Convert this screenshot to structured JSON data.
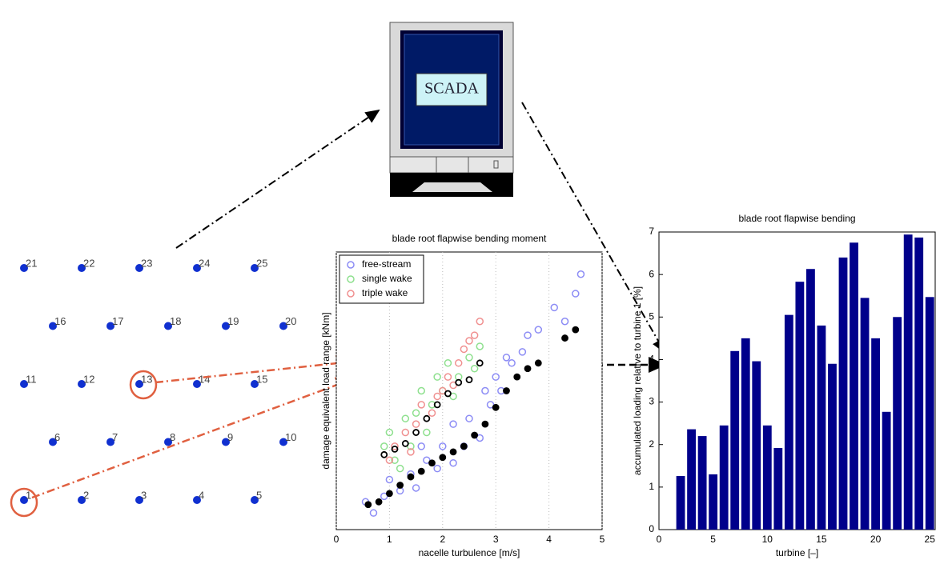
{
  "monitor_label": "SCADA",
  "turbines": [
    "1",
    "2",
    "3",
    "4",
    "5",
    "6",
    "7",
    "8",
    "9",
    "10",
    "11",
    "12",
    "13",
    "14",
    "15",
    "16",
    "17",
    "18",
    "19",
    "20",
    "21",
    "22",
    "23",
    "24",
    "25"
  ],
  "chart_data": [
    {
      "type": "scatter",
      "title": "blade root flapwise bending moment",
      "x_label": "nacelle turbulence [m/s]",
      "y_label": "damage equivalent load range [kNm]",
      "xlim": [
        0,
        5
      ],
      "xticks": [
        0,
        1,
        2,
        3,
        4,
        5
      ],
      "ylim": [
        0,
        1
      ],
      "grid": true,
      "legend": "upper left",
      "series": [
        {
          "name": "free-stream",
          "color": "#8c8cf5",
          "x": [
            0.55,
            0.7,
            0.9,
            1.0,
            1.2,
            1.4,
            1.5,
            1.7,
            1.9,
            2.0,
            2.2,
            2.4,
            2.5,
            2.7,
            2.9,
            3.0,
            3.1,
            3.3,
            3.5,
            3.6,
            3.8,
            4.1,
            4.3,
            4.5,
            4.6,
            2.2,
            1.6,
            2.8,
            3.2
          ],
          "values": [
            0.1,
            0.06,
            0.12,
            0.18,
            0.14,
            0.2,
            0.15,
            0.25,
            0.22,
            0.3,
            0.24,
            0.3,
            0.4,
            0.33,
            0.45,
            0.55,
            0.5,
            0.6,
            0.64,
            0.7,
            0.72,
            0.8,
            0.75,
            0.85,
            0.92,
            0.38,
            0.3,
            0.5,
            0.62
          ]
        },
        {
          "name": "single wake",
          "color": "#8ee08e",
          "x": [
            0.9,
            1.0,
            1.1,
            1.3,
            1.4,
            1.5,
            1.6,
            1.8,
            1.9,
            2.0,
            2.1,
            2.3,
            2.5,
            2.6,
            2.7,
            1.2,
            1.7,
            2.2
          ],
          "values": [
            0.3,
            0.35,
            0.25,
            0.4,
            0.3,
            0.42,
            0.5,
            0.45,
            0.55,
            0.5,
            0.6,
            0.55,
            0.62,
            0.58,
            0.66,
            0.22,
            0.35,
            0.48
          ]
        },
        {
          "name": "triple wake",
          "color": "#f09090",
          "x": [
            1.0,
            1.1,
            1.3,
            1.5,
            1.6,
            1.8,
            2.0,
            2.1,
            2.3,
            2.4,
            2.5,
            2.6,
            2.7,
            1.4,
            1.9,
            2.2
          ],
          "values": [
            0.25,
            0.3,
            0.35,
            0.38,
            0.45,
            0.42,
            0.5,
            0.55,
            0.6,
            0.65,
            0.68,
            0.7,
            0.75,
            0.28,
            0.48,
            0.52
          ]
        }
      ],
      "means": [
        {
          "color": "#000000",
          "filled": true,
          "x": [
            0.6,
            0.8,
            1.0,
            1.2,
            1.4,
            1.6,
            1.8,
            2.0,
            2.2,
            2.4,
            2.6,
            2.8,
            3.0,
            3.2,
            3.4,
            3.6,
            3.8,
            4.3,
            4.5
          ],
          "values": [
            0.09,
            0.1,
            0.13,
            0.16,
            0.19,
            0.21,
            0.24,
            0.26,
            0.28,
            0.3,
            0.34,
            0.38,
            0.44,
            0.5,
            0.55,
            0.58,
            0.6,
            0.69,
            0.72
          ]
        },
        {
          "color": "#000000",
          "filled": false,
          "x": [
            0.9,
            1.1,
            1.3,
            1.5,
            1.7,
            1.9,
            2.1,
            2.3,
            2.5,
            2.7
          ],
          "values": [
            0.27,
            0.29,
            0.31,
            0.35,
            0.4,
            0.45,
            0.49,
            0.53,
            0.54,
            0.6
          ]
        }
      ]
    },
    {
      "type": "bar",
      "title": "blade root flapwise bending",
      "x_label": "turbine [–]",
      "y_label": "accumulated loading relative to turbine 1 [%]",
      "xlim": [
        0,
        25.5
      ],
      "xticks": [
        0,
        5,
        10,
        15,
        20,
        25
      ],
      "ylim": [
        0,
        7
      ],
      "yticks": [
        0,
        1,
        2,
        3,
        4,
        5,
        6,
        7
      ],
      "grid": false,
      "color": "#00008b",
      "x": [
        2,
        3,
        4,
        5,
        6,
        7,
        8,
        9,
        10,
        11,
        12,
        13,
        14,
        15,
        16,
        17,
        18,
        19,
        20,
        21,
        22,
        23,
        24,
        25
      ],
      "values": [
        1.26,
        2.36,
        2.2,
        1.3,
        2.45,
        4.2,
        4.5,
        3.96,
        2.45,
        1.92,
        5.05,
        5.83,
        6.13,
        4.8,
        3.9,
        6.4,
        6.75,
        5.45,
        4.5,
        2.77,
        5.0,
        6.94,
        6.87,
        5.47
      ]
    }
  ]
}
